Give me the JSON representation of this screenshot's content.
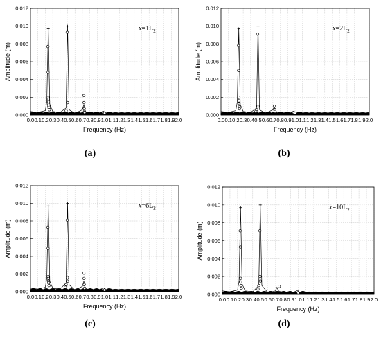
{
  "chart_data": [
    {
      "type": "line",
      "panel_label": "(a)",
      "annotation": "x=1L2",
      "annotation_main": "x=1L",
      "annotation_sub": "2",
      "xlabel": "Frequency (Hz)",
      "ylabel": "Amplitude (m)",
      "xlim": [
        0.0,
        2.0
      ],
      "ylim": [
        0.0,
        0.012
      ],
      "x_ticks": [
        "0.0",
        "0.1",
        "0.2",
        "0.3",
        "0.4",
        "0.5",
        "0.6",
        "0.7",
        "0.8",
        "0.9",
        "1.0",
        "1.1",
        "1.2",
        "1.3",
        "1.4",
        "1.5",
        "1.6",
        "1.7",
        "1.8",
        "1.9",
        "2.0"
      ],
      "y_ticks": [
        "0.000",
        "0.002",
        "0.004",
        "0.006",
        "0.008",
        "0.010",
        "0.012"
      ],
      "grid": true,
      "series": [
        {
          "marker": "plus",
          "x": [
            0.24,
            0.5
          ],
          "y": [
            0.0097,
            0.01
          ]
        },
        {
          "marker": "line-spectrum",
          "x": [
            0.0,
            0.1,
            0.2,
            0.22,
            0.24,
            0.26,
            0.3,
            0.4,
            0.48,
            0.5,
            0.52,
            0.6,
            0.7,
            0.72,
            0.74,
            0.8,
            0.95,
            1.0,
            1.2,
            1.5,
            2.0
          ],
          "y": [
            0.0004,
            0.0003,
            0.0005,
            0.0015,
            0.0097,
            0.0012,
            0.0004,
            0.0003,
            0.0008,
            0.01,
            0.0006,
            0.0002,
            0.0006,
            0.0012,
            0.0004,
            0.0002,
            0.0002,
            0.0002,
            0.0001,
            0.0001,
            0.0001
          ]
        },
        {
          "marker": "circle",
          "x": [
            0.235,
            0.237,
            0.239,
            0.241,
            0.243,
            0.245,
            0.247,
            0.25,
            0.255,
            0.495,
            0.5,
            0.48,
            0.72,
            0.722,
            0.725,
            0.728,
            0.73,
            0.98,
            1.0
          ],
          "y": [
            0.0077,
            0.0048,
            0.002,
            0.0018,
            0.0015,
            0.0012,
            0.001,
            0.0008,
            0.0006,
            0.0093,
            0.0014,
            0.0005,
            0.0022,
            0.0014,
            0.0007,
            0.0004,
            0.0003,
            0.0003,
            0.0002
          ]
        }
      ]
    },
    {
      "type": "line",
      "panel_label": "(b)",
      "annotation": "x=2L2",
      "annotation_main": "x=2L",
      "annotation_sub": "2",
      "xlabel": "Frequency (Hz)",
      "ylabel": "Amplitude (m)",
      "xlim": [
        0.0,
        2.0
      ],
      "ylim": [
        0.0,
        0.012
      ],
      "x_ticks": [
        "0.0",
        "0.1",
        "0.2",
        "0.3",
        "0.4",
        "0.5",
        "0.6",
        "0.7",
        "0.8",
        "0.9",
        "1.0",
        "1.1",
        "1.2",
        "1.3",
        "1.4",
        "1.5",
        "1.6",
        "1.7",
        "1.8",
        "1.9",
        "2.0"
      ],
      "y_ticks": [
        "0.000",
        "0.002",
        "0.004",
        "0.006",
        "0.008",
        "0.010",
        "0.012"
      ],
      "grid": true,
      "series": [
        {
          "marker": "plus",
          "x": [
            0.24,
            0.5
          ],
          "y": [
            0.0097,
            0.01
          ]
        },
        {
          "marker": "line-spectrum",
          "x": [
            0.0,
            0.1,
            0.2,
            0.22,
            0.24,
            0.26,
            0.3,
            0.4,
            0.48,
            0.5,
            0.52,
            0.6,
            0.7,
            0.72,
            0.74,
            0.8,
            0.95,
            1.0,
            1.2,
            1.5,
            2.0
          ],
          "y": [
            0.0004,
            0.0003,
            0.0005,
            0.0015,
            0.0097,
            0.0012,
            0.0004,
            0.0003,
            0.0008,
            0.01,
            0.0006,
            0.0002,
            0.0006,
            0.001,
            0.0004,
            0.0002,
            0.0002,
            0.0002,
            0.0001,
            0.0001,
            0.0001
          ]
        },
        {
          "marker": "circle",
          "x": [
            0.235,
            0.237,
            0.239,
            0.241,
            0.243,
            0.245,
            0.247,
            0.25,
            0.495,
            0.5,
            0.48,
            0.47,
            0.72,
            0.725,
            0.73,
            0.98,
            1.0
          ],
          "y": [
            0.0078,
            0.005,
            0.002,
            0.0016,
            0.0013,
            0.0011,
            0.0009,
            0.0007,
            0.0091,
            0.001,
            0.0006,
            0.0004,
            0.001,
            0.0006,
            0.0004,
            0.0003,
            0.0002
          ]
        }
      ]
    },
    {
      "type": "line",
      "panel_label": "(c)",
      "annotation": "x=6L2",
      "annotation_main": "x=6L",
      "annotation_sub": "2",
      "xlabel": "Frequency (Hz)",
      "ylabel": "Amplitude (m)",
      "xlim": [
        0.0,
        2.0
      ],
      "ylim": [
        0.0,
        0.012
      ],
      "x_ticks": [
        "0.0",
        "0.1",
        "0.2",
        "0.3",
        "0.4",
        "0.5",
        "0.6",
        "0.7",
        "0.8",
        "0.9",
        "1.0",
        "1.1",
        "1.2",
        "1.3",
        "1.4",
        "1.5",
        "1.6",
        "1.7",
        "1.8",
        "1.9",
        "2.0"
      ],
      "y_ticks": [
        "0.000",
        "0.002",
        "0.004",
        "0.006",
        "0.008",
        "0.010",
        "0.012"
      ],
      "grid": true,
      "series": [
        {
          "marker": "plus",
          "x": [
            0.24,
            0.5
          ],
          "y": [
            0.0097,
            0.01
          ]
        },
        {
          "marker": "line-spectrum",
          "x": [
            0.0,
            0.1,
            0.2,
            0.22,
            0.24,
            0.26,
            0.3,
            0.4,
            0.48,
            0.5,
            0.52,
            0.6,
            0.7,
            0.72,
            0.74,
            0.8,
            0.95,
            1.0,
            1.2,
            1.5,
            2.0
          ],
          "y": [
            0.0004,
            0.0003,
            0.0005,
            0.0015,
            0.0097,
            0.0012,
            0.0004,
            0.0003,
            0.001,
            0.01,
            0.0008,
            0.0002,
            0.0006,
            0.0012,
            0.0004,
            0.0002,
            0.0002,
            0.0002,
            0.0001,
            0.0001,
            0.0001
          ]
        },
        {
          "marker": "circle",
          "x": [
            0.235,
            0.237,
            0.239,
            0.241,
            0.243,
            0.245,
            0.25,
            0.495,
            0.497,
            0.5,
            0.48,
            0.47,
            0.72,
            0.722,
            0.725,
            0.73,
            0.98,
            1.0
          ],
          "y": [
            0.0073,
            0.0049,
            0.0017,
            0.0015,
            0.0012,
            0.001,
            0.0007,
            0.0081,
            0.0016,
            0.0012,
            0.0008,
            0.0005,
            0.0021,
            0.0015,
            0.0008,
            0.0004,
            0.0003,
            0.0002
          ]
        }
      ]
    },
    {
      "type": "line",
      "panel_label": "(d)",
      "annotation": "x=10L2",
      "annotation_main": "x=10L",
      "annotation_sub": "2",
      "xlabel": "Frequency (Hz)",
      "ylabel": "Amplitude (m)",
      "xlim": [
        0.0,
        2.0
      ],
      "ylim": [
        0.0,
        0.012
      ],
      "x_ticks": [
        "0.0",
        "0.1",
        "0.2",
        "0.3",
        "0.4",
        "0.5",
        "0.6",
        "0.7",
        "0.8",
        "0.9",
        "1.0",
        "1.1",
        "1.2",
        "1.3",
        "1.4",
        "1.5",
        "1.6",
        "1.7",
        "1.8",
        "1.9",
        "2.0"
      ],
      "y_ticks": [
        "0.000",
        "0.002",
        "0.004",
        "0.006",
        "0.008",
        "0.010",
        "0.012"
      ],
      "grid": true,
      "series": [
        {
          "marker": "plus",
          "x": [
            0.24,
            0.5
          ],
          "y": [
            0.0097,
            0.01
          ]
        },
        {
          "marker": "line-spectrum",
          "x": [
            0.0,
            0.1,
            0.2,
            0.22,
            0.24,
            0.26,
            0.3,
            0.4,
            0.48,
            0.5,
            0.52,
            0.6,
            0.7,
            0.72,
            0.74,
            0.8,
            0.95,
            1.0,
            1.2,
            1.5,
            2.0
          ],
          "y": [
            0.0004,
            0.0003,
            0.0005,
            0.0015,
            0.0097,
            0.0012,
            0.0004,
            0.0003,
            0.001,
            0.01,
            0.001,
            0.0002,
            0.0004,
            0.0008,
            0.0004,
            0.0002,
            0.0002,
            0.0003,
            0.0001,
            0.0001,
            0.0001
          ]
        },
        {
          "marker": "circle",
          "x": [
            0.235,
            0.237,
            0.239,
            0.241,
            0.245,
            0.25,
            0.495,
            0.497,
            0.5,
            0.48,
            0.47,
            0.75,
            0.99,
            1.0
          ],
          "y": [
            0.0071,
            0.0053,
            0.0018,
            0.0014,
            0.001,
            0.0007,
            0.0071,
            0.002,
            0.0015,
            0.001,
            0.0006,
            0.0009,
            0.0003,
            0.0002
          ]
        }
      ]
    }
  ]
}
